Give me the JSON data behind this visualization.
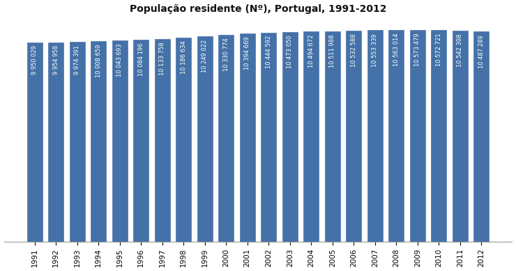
{
  "title": "População residente (Nº), Portugal, 1991-2012",
  "years": [
    1991,
    1992,
    1993,
    1994,
    1995,
    1996,
    1997,
    1998,
    1999,
    2000,
    2001,
    2002,
    2003,
    2004,
    2005,
    2006,
    2007,
    2008,
    2009,
    2010,
    2011,
    2012
  ],
  "values": [
    9950029,
    9954958,
    9974391,
    10008659,
    10043693,
    10084196,
    10133758,
    10186634,
    10249022,
    10330774,
    10394669,
    10444592,
    10473050,
    10494672,
    10511988,
    10532588,
    10553339,
    10563014,
    10573479,
    10572721,
    10542398,
    10487289
  ],
  "labels": [
    "9 950 029",
    "9 954 958",
    "9 974 391",
    "10 008 659",
    "10 043 693",
    "10 084 196",
    "10 133 758",
    "10 186 634",
    "10 249 022",
    "10 330 774",
    "10 394 669",
    "10 444 592",
    "10 473 050",
    "10 494 672",
    "10 511 988",
    "10 532 588",
    "10 553 339",
    "10 563 014",
    "10 573 479",
    "10 572 721",
    "10 542 398",
    "10 487 289"
  ],
  "bar_color": "#4472a8",
  "bar_edge_color": "#3a62a0",
  "text_color": "#ffffff",
  "background_color": "#ffffff",
  "title_fontsize": 10,
  "label_fontsize": 6.0,
  "tick_fontsize": 7.5,
  "ylim_min": 0,
  "ylim_max": 11200000
}
